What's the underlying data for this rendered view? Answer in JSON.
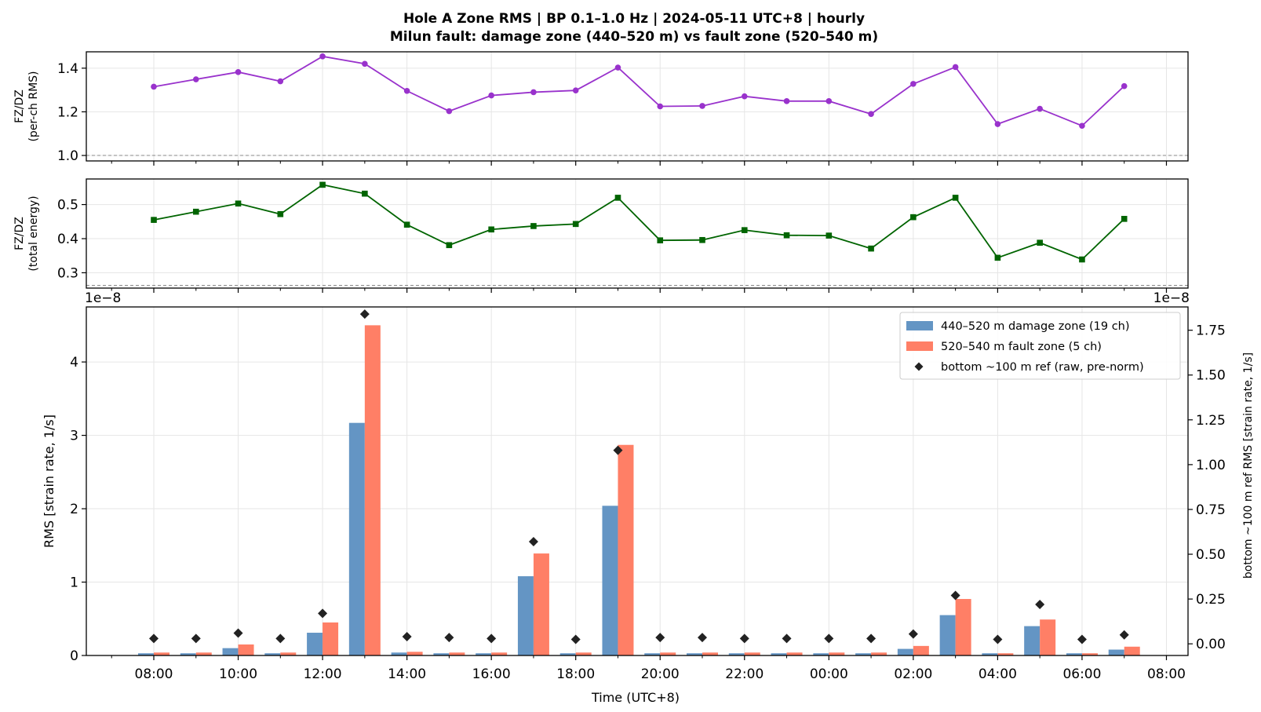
{
  "figure": {
    "title_line1": "Hole A Zone RMS  |  BP 0.1–1.0 Hz  |  2024-05-11 UTC+8  |  hourly",
    "title_line2": "Milun fault: damage zone (440–520 m) vs fault zone (520–540 m)",
    "x_label": "Time (UTC+8)",
    "x_ticks": [
      "08:00",
      "10:00",
      "12:00",
      "14:00",
      "16:00",
      "18:00",
      "20:00",
      "22:00",
      "00:00",
      "02:00",
      "04:00",
      "06:00",
      "08:00"
    ]
  },
  "chart_data": [
    {
      "type": "line",
      "panel": "top",
      "ylabel_line1": "FZ/DZ",
      "ylabel_line2": "(per-ch RMS)",
      "ylim": [
        0.975,
        1.475
      ],
      "yticks": [
        "1.0",
        "1.2",
        "1.4"
      ],
      "yticks_values": [
        1.0,
        1.2,
        1.4
      ],
      "reference_line": 1.0,
      "grid": true,
      "color": "#9932CC",
      "marker": "circle",
      "x_hours": [
        0,
        1,
        2,
        3,
        4,
        5,
        6,
        7,
        8,
        9,
        10,
        11,
        12,
        13,
        14,
        15,
        16,
        17,
        18,
        19,
        20,
        21,
        22,
        23
      ],
      "values": [
        1.315,
        1.349,
        1.382,
        1.34,
        1.454,
        1.42,
        1.296,
        1.203,
        1.275,
        1.29,
        1.298,
        1.403,
        1.225,
        1.227,
        1.271,
        1.249,
        1.249,
        1.19,
        1.328,
        1.405,
        1.144,
        1.214,
        1.136,
        1.318
      ]
    },
    {
      "type": "line",
      "panel": "middle",
      "ylabel_line1": "FZ/DZ",
      "ylabel_line2": "(total energy)",
      "ylim": [
        0.255,
        0.575
      ],
      "yticks": [
        "0.3",
        "0.4",
        "0.5"
      ],
      "yticks_values": [
        0.3,
        0.4,
        0.5
      ],
      "reference_line": 0.263,
      "grid": true,
      "color": "#006400",
      "marker": "square",
      "x_hours": [
        0,
        1,
        2,
        3,
        4,
        5,
        6,
        7,
        8,
        9,
        10,
        11,
        12,
        13,
        14,
        15,
        16,
        17,
        18,
        19,
        20,
        21,
        22,
        23
      ],
      "values": [
        0.455,
        0.479,
        0.503,
        0.472,
        0.558,
        0.532,
        0.441,
        0.381,
        0.427,
        0.437,
        0.443,
        0.52,
        0.395,
        0.396,
        0.425,
        0.41,
        0.409,
        0.371,
        0.463,
        0.52,
        0.344,
        0.388,
        0.339,
        0.458
      ]
    },
    {
      "type": "bar",
      "panel": "bottom",
      "ylabel": "RMS  [strain rate, 1/s]",
      "ylabel_right": "bottom ~100 m ref RMS  [strain rate, 1/s]",
      "offset_left": "1e−8",
      "offset_right": "1e−8",
      "ylim": [
        0,
        4.75
      ],
      "yticks": [
        "0",
        "1",
        "2",
        "3",
        "4"
      ],
      "yticks_values": [
        0,
        1,
        2,
        3,
        4
      ],
      "ylim_right": [
        -0.065,
        1.88
      ],
      "yticks_right": [
        "0.00",
        "0.25",
        "0.50",
        "0.75",
        "1.00",
        "1.25",
        "1.50",
        "1.75"
      ],
      "yticks_right_values": [
        0,
        0.25,
        0.5,
        0.75,
        1.0,
        1.25,
        1.5,
        1.75
      ],
      "grid": true,
      "legend_position": "top-right",
      "x_hours": [
        0,
        1,
        2,
        3,
        4,
        5,
        6,
        7,
        8,
        9,
        10,
        11,
        12,
        13,
        14,
        15,
        16,
        17,
        18,
        19,
        20,
        21,
        22,
        23
      ],
      "series": [
        {
          "name": "440–520 m  damage zone (19 ch)",
          "color": "#6495C4",
          "values": [
            0.03,
            0.03,
            0.1,
            0.03,
            0.31,
            3.17,
            0.04,
            0.03,
            0.03,
            1.08,
            0.03,
            2.04,
            0.03,
            0.03,
            0.03,
            0.03,
            0.03,
            0.03,
            0.09,
            0.55,
            0.03,
            0.4,
            0.03,
            0.08
          ]
        },
        {
          "name": "520–540 m  fault zone (5 ch)",
          "color": "#FF7F66",
          "values": [
            0.04,
            0.04,
            0.15,
            0.04,
            0.45,
            4.5,
            0.05,
            0.04,
            0.04,
            1.39,
            0.04,
            2.87,
            0.04,
            0.04,
            0.04,
            0.04,
            0.04,
            0.04,
            0.13,
            0.77,
            0.03,
            0.49,
            0.03,
            0.12
          ]
        },
        {
          "name": "bottom ~100 m ref (raw, pre-norm)",
          "color": "#222222",
          "axis": "right",
          "marker": "diamond",
          "values": [
            0.03,
            0.03,
            0.06,
            0.03,
            0.17,
            1.84,
            0.04,
            0.035,
            0.03,
            0.57,
            0.025,
            1.08,
            0.035,
            0.035,
            0.03,
            0.03,
            0.03,
            0.03,
            0.055,
            0.27,
            0.025,
            0.22,
            0.025,
            0.05
          ]
        }
      ]
    }
  ]
}
